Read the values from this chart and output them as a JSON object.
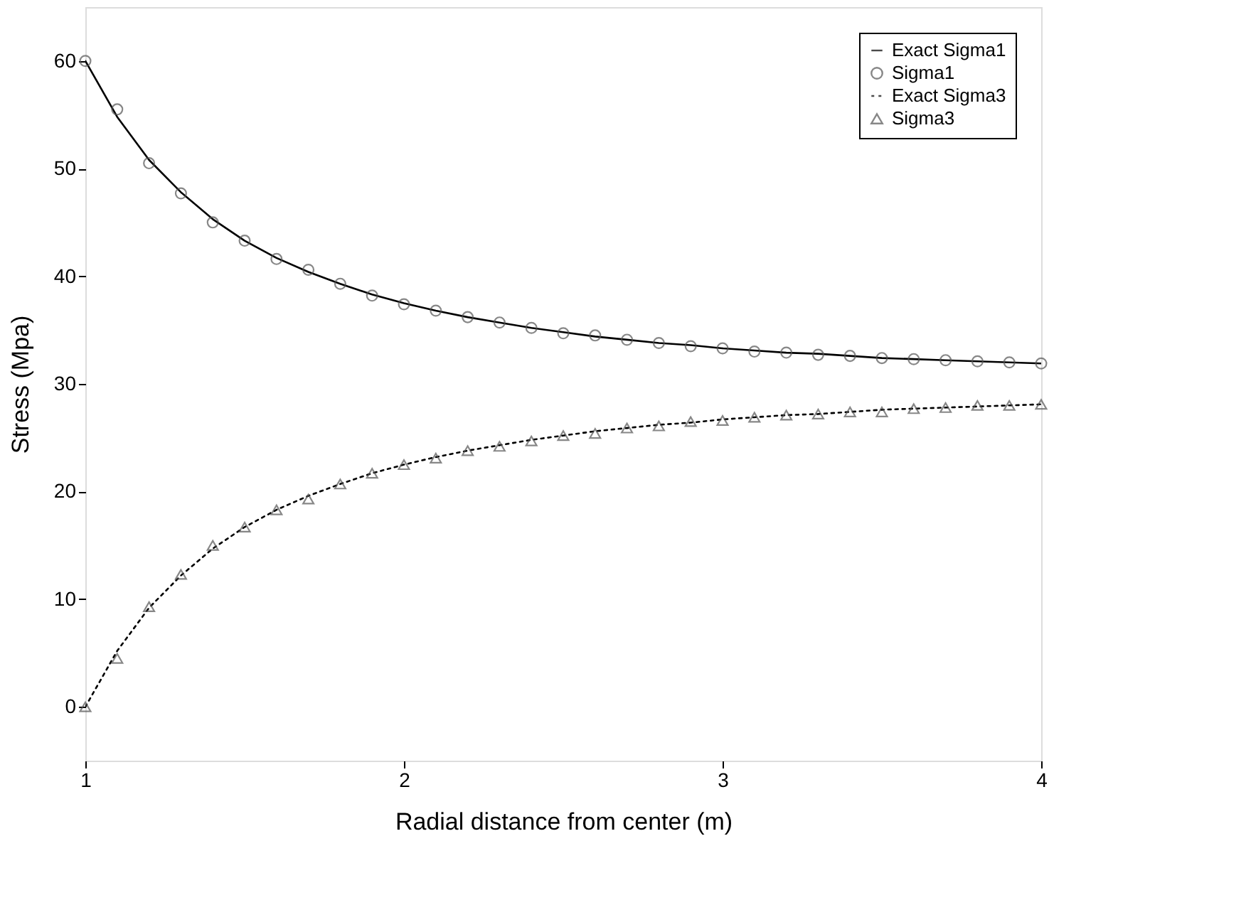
{
  "chart_data": {
    "type": "line",
    "xlabel": "Radial distance from center (m)",
    "ylabel": "Stress (Mpa)",
    "x": [
      1.0,
      1.1,
      1.2,
      1.3,
      1.4,
      1.5,
      1.6,
      1.7,
      1.8,
      1.9,
      2.0,
      2.1,
      2.2,
      2.3,
      2.4,
      2.5,
      2.6,
      2.7,
      2.8,
      2.9,
      3.0,
      3.1,
      3.2,
      3.3,
      3.4,
      3.5,
      3.6,
      3.7,
      3.8,
      3.9,
      4.0
    ],
    "xlim": [
      1,
      4
    ],
    "xticks": [
      1,
      2,
      3,
      4
    ],
    "ylim": [
      -5,
      65
    ],
    "yticks": [
      0,
      10,
      20,
      30,
      40,
      50,
      60
    ],
    "grid": false,
    "legend": "top right",
    "series": [
      {
        "name": "Exact Sigma1",
        "line_style": "solid",
        "marker": "none",
        "color": "#000000",
        "values": [
          60,
          54.8,
          50.8,
          47.8,
          45.3,
          43.3,
          41.7,
          40.4,
          39.3,
          38.3,
          37.5,
          36.8,
          36.2,
          35.7,
          35.2,
          34.8,
          34.4,
          34.1,
          33.8,
          33.6,
          33.3,
          33.1,
          32.9,
          32.8,
          32.6,
          32.4,
          32.3,
          32.2,
          32.1,
          32.0,
          31.9
        ]
      },
      {
        "name": "Sigma1",
        "type": "scatter",
        "marker": "circle",
        "color": "#555555",
        "values": [
          60,
          55.5,
          50.5,
          47.7,
          45.0,
          43.3,
          41.6,
          40.6,
          39.3,
          38.2,
          37.4,
          36.8,
          36.2,
          35.7,
          35.2,
          34.7,
          34.5,
          34.1,
          33.8,
          33.5,
          33.3,
          33.0,
          32.9,
          32.7,
          32.6,
          32.4,
          32.3,
          32.2,
          32.1,
          32.0,
          31.9
        ]
      },
      {
        "name": "Exact Sigma3",
        "line_style": "dotted",
        "marker": "none",
        "color": "#000000",
        "values": [
          0,
          5.2,
          9.2,
          12.2,
          14.7,
          16.7,
          18.3,
          19.6,
          20.7,
          21.7,
          22.5,
          23.2,
          23.8,
          24.3,
          24.8,
          25.2,
          25.6,
          25.9,
          26.2,
          26.4,
          26.7,
          26.9,
          27.1,
          27.2,
          27.4,
          27.6,
          27.7,
          27.8,
          27.9,
          28.0,
          28.1
        ]
      },
      {
        "name": "Sigma3",
        "type": "scatter",
        "marker": "triangle",
        "color": "#555555",
        "values": [
          0,
          4.5,
          9.3,
          12.3,
          15.0,
          16.7,
          18.3,
          19.3,
          20.7,
          21.7,
          22.5,
          23.1,
          23.8,
          24.2,
          24.7,
          25.2,
          25.4,
          25.9,
          26.1,
          26.5,
          26.6,
          26.9,
          27.1,
          27.2,
          27.4,
          27.4,
          27.7,
          27.8,
          28.0,
          28.0,
          28.1
        ]
      }
    ]
  }
}
